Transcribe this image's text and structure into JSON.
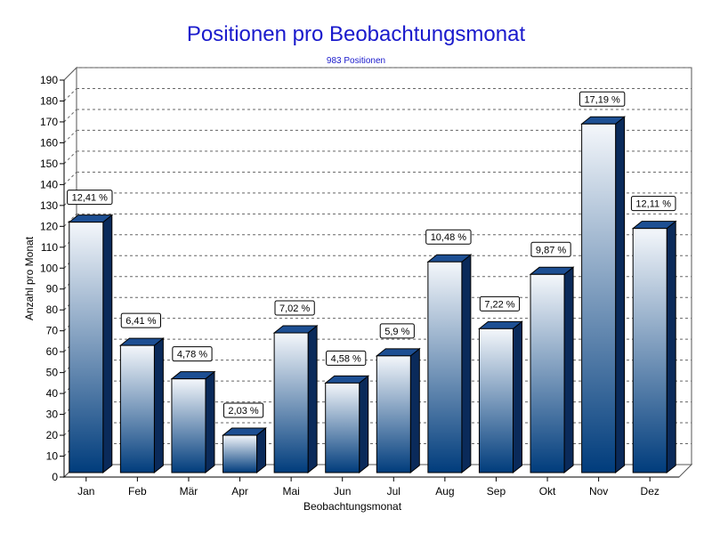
{
  "chart_data": {
    "type": "bar",
    "title": "Positionen pro Beobachtungsmonat",
    "subtitle": "983 Positionen",
    "xlabel": "Beobachtungsmonat",
    "ylabel": "Anzahl pro Monat",
    "ylim": [
      0,
      190
    ],
    "ytick_step": 10,
    "grid": true,
    "legend": "none",
    "categories": [
      "Jan",
      "Feb",
      "Mär",
      "Apr",
      "Mai",
      "Jun",
      "Jul",
      "Aug",
      "Sep",
      "Okt",
      "Nov",
      "Dez"
    ],
    "values": [
      122,
      63,
      47,
      20,
      69,
      45,
      58,
      103,
      71,
      97,
      169,
      119
    ],
    "data_labels": [
      "12,41 %",
      "6,41 %",
      "4,78 %",
      "2,03 %",
      "7,02 %",
      "4,58 %",
      "5,9 %",
      "10,48 %",
      "7,22 %",
      "9,87 %",
      "17,19 %",
      "12,11 %"
    ],
    "colors": {
      "bar_top": "#f4f7fb",
      "bar_bottom": "#003c7c",
      "cap": "#1d4f93",
      "side": "#0a2a5a",
      "title": "#1a1acc"
    }
  }
}
